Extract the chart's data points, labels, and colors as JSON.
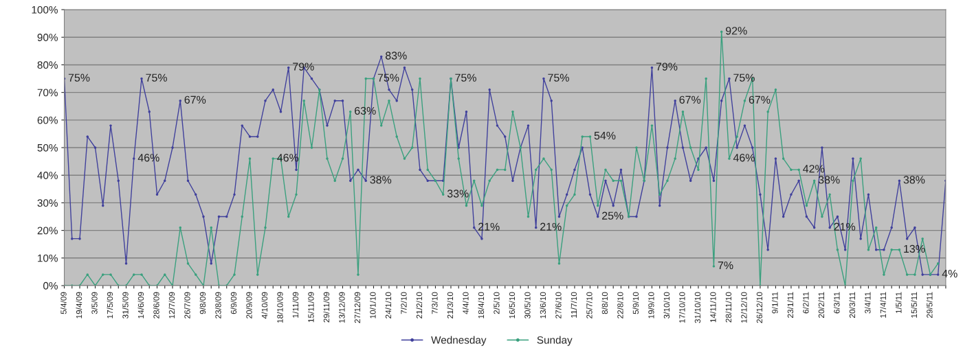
{
  "chart_data": {
    "type": "line",
    "categories": [
      "5/4/09",
      null,
      "19/4/09",
      null,
      "3/5/09",
      null,
      "17/5/09",
      null,
      "31/5/09",
      null,
      "14/6/09",
      null,
      "28/6/09",
      null,
      "12/7/09",
      null,
      "26/7/09",
      null,
      "9/8/09",
      null,
      "23/8/09",
      null,
      "6/9/09",
      null,
      "20/9/09",
      null,
      "4/10/09",
      null,
      "18/10/09",
      null,
      "1/11/09",
      null,
      "15/11/09",
      null,
      "29/11/09",
      null,
      "13/12/09",
      null,
      "27/12/09",
      null,
      "10/1/10",
      null,
      "24/1/10",
      null,
      "7/2/10",
      null,
      "21/2/10",
      null,
      "7/3/10",
      null,
      "21/3/10",
      null,
      "4/4/10",
      null,
      "18/4/10",
      null,
      "2/5/10",
      null,
      "16/5/10",
      null,
      "30/5/10",
      null,
      "13/6/10",
      null,
      "27/6/10",
      null,
      "11/7/10",
      null,
      "25/7/10",
      null,
      "8/8/10",
      null,
      "22/8/10",
      null,
      "5/9/10",
      null,
      "19/9/10",
      null,
      "3/10/10",
      null,
      "17/10/10",
      null,
      "31/10/10",
      null,
      "14/11/10",
      null,
      "28/11/10",
      null,
      "12/12/10",
      null,
      "26/12/10",
      null,
      "9/1/11",
      null,
      "23/1/11",
      null,
      "6/2/11",
      null,
      "20/2/11",
      null,
      "6/3/11",
      null,
      "20/3/11",
      null,
      "3/4/11",
      null,
      "17/4/11",
      null,
      "1/5/11",
      null,
      "15/5/11",
      null,
      "29/5/11",
      null,
      null
    ],
    "series": [
      {
        "name": "Wednesday",
        "color": "#40409c",
        "values": [
          75,
          17,
          17,
          54,
          50,
          29,
          58,
          38,
          8,
          46,
          75,
          63,
          33,
          38,
          50,
          67,
          38,
          33,
          25,
          8,
          25,
          25,
          33,
          58,
          54,
          54,
          67,
          71,
          63,
          79,
          42,
          79,
          75,
          71,
          58,
          67,
          67,
          38,
          42,
          38,
          75,
          83,
          71,
          67,
          79,
          71,
          42,
          38,
          38,
          38,
          75,
          50,
          63,
          21,
          17,
          71,
          58,
          54,
          38,
          50,
          58,
          21,
          75,
          67,
          25,
          33,
          42,
          50,
          33,
          25,
          38,
          29,
          42,
          25,
          25,
          38,
          79,
          29,
          50,
          67,
          50,
          38,
          46,
          50,
          38,
          67,
          75,
          50,
          58,
          50,
          33,
          13,
          46,
          25,
          33,
          38,
          25,
          21,
          50,
          21,
          25,
          13,
          46,
          17,
          33,
          13,
          13,
          21,
          38,
          17,
          21,
          4,
          4,
          4,
          38
        ],
        "value_labels": [
          "75%",
          null,
          null,
          null,
          null,
          null,
          null,
          null,
          null,
          "46%",
          "75%",
          null,
          null,
          null,
          null,
          "67%",
          null,
          null,
          null,
          null,
          null,
          null,
          null,
          null,
          null,
          null,
          null,
          null,
          null,
          "79%",
          null,
          null,
          null,
          null,
          null,
          null,
          null,
          null,
          null,
          "38%",
          null,
          "83%",
          null,
          null,
          null,
          null,
          null,
          null,
          null,
          null,
          null,
          null,
          null,
          "21%",
          null,
          null,
          null,
          null,
          null,
          null,
          null,
          "21%",
          "75%",
          null,
          null,
          null,
          null,
          null,
          null,
          "25%",
          null,
          null,
          null,
          null,
          null,
          null,
          "79%",
          null,
          null,
          "67%",
          null,
          null,
          null,
          null,
          null,
          null,
          "75%",
          null,
          null,
          null,
          null,
          null,
          null,
          null,
          null,
          null,
          null,
          null,
          null,
          "21%",
          null,
          null,
          null,
          null,
          null,
          null,
          null,
          null,
          "38%",
          null,
          null,
          null,
          null,
          "4%",
          null
        ]
      },
      {
        "name": "Sunday",
        "color": "#3aa07e",
        "values": [
          0,
          0,
          0,
          4,
          0,
          4,
          4,
          0,
          0,
          4,
          4,
          0,
          0,
          4,
          0,
          21,
          8,
          4,
          0,
          21,
          0,
          0,
          4,
          25,
          46,
          4,
          21,
          46,
          46,
          25,
          33,
          67,
          50,
          71,
          46,
          38,
          46,
          63,
          4,
          75,
          75,
          58,
          67,
          54,
          46,
          50,
          75,
          42,
          38,
          33,
          75,
          46,
          29,
          38,
          29,
          38,
          42,
          42,
          63,
          50,
          25,
          42,
          46,
          42,
          8,
          29,
          33,
          54,
          54,
          29,
          42,
          38,
          38,
          25,
          50,
          38,
          58,
          33,
          38,
          46,
          63,
          50,
          42,
          75,
          7,
          92,
          46,
          54,
          67,
          75,
          0,
          63,
          71,
          46,
          42,
          42,
          29,
          38,
          25,
          33,
          13,
          0,
          38,
          46,
          13,
          21,
          4,
          13,
          13,
          4,
          4,
          17,
          4,
          8,
          null
        ],
        "value_labels": [
          null,
          null,
          null,
          null,
          null,
          null,
          null,
          null,
          null,
          null,
          null,
          null,
          null,
          null,
          null,
          null,
          null,
          null,
          null,
          null,
          null,
          null,
          null,
          null,
          null,
          null,
          null,
          "46%",
          null,
          null,
          null,
          null,
          null,
          null,
          null,
          null,
          null,
          "63%",
          null,
          null,
          "75%",
          null,
          null,
          null,
          null,
          null,
          null,
          null,
          null,
          "33%",
          "75%",
          null,
          null,
          null,
          null,
          null,
          null,
          null,
          null,
          null,
          null,
          null,
          null,
          null,
          null,
          null,
          null,
          null,
          "54%",
          null,
          null,
          null,
          null,
          null,
          null,
          null,
          null,
          null,
          null,
          null,
          null,
          null,
          null,
          null,
          "7%",
          "92%",
          "46%",
          null,
          "67%",
          null,
          null,
          null,
          null,
          null,
          null,
          "42%",
          null,
          "38%",
          null,
          null,
          null,
          null,
          null,
          null,
          null,
          null,
          null,
          null,
          "13%",
          null,
          null,
          null,
          null,
          null,
          null
        ]
      }
    ],
    "ylim": [
      0,
      100
    ],
    "yticks": [
      {
        "value": 0,
        "label": "0%"
      },
      {
        "value": 10,
        "label": "10%"
      },
      {
        "value": 20,
        "label": "20%"
      },
      {
        "value": 30,
        "label": "30%"
      },
      {
        "value": 40,
        "label": "40%"
      },
      {
        "value": 50,
        "label": "50%"
      },
      {
        "value": 60,
        "label": "60%"
      },
      {
        "value": 70,
        "label": "70%"
      },
      {
        "value": 80,
        "label": "80%"
      },
      {
        "value": 90,
        "label": "90%"
      },
      {
        "value": 100,
        "label": "100%"
      }
    ],
    "grid": "y",
    "legend": "bottom",
    "marker": "circle",
    "line_style": "solid"
  }
}
